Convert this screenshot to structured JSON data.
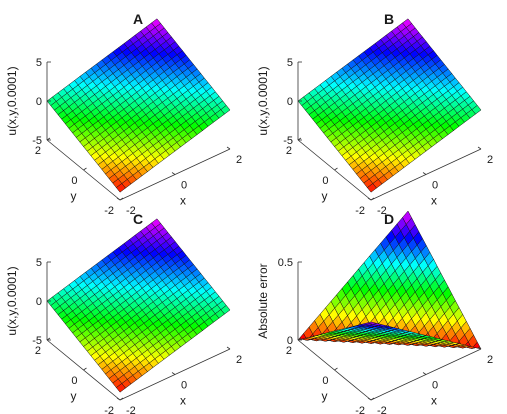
{
  "chart_data": [
    {
      "type": "surface",
      "title": "A",
      "xlabel": "x",
      "ylabel": "y",
      "zlabel": "u(x,y,0.0001)",
      "xlim": [
        -2,
        2
      ],
      "ylim": [
        -2,
        2
      ],
      "zlim": [
        -5,
        5
      ],
      "xticks": [
        "-2",
        "0",
        "2"
      ],
      "yticks": [
        "-2",
        "0",
        "2"
      ],
      "zticks": [
        "-5",
        "0",
        "5"
      ],
      "grid": false,
      "colormap": "hsv",
      "surface": {
        "formula": "u = x + y",
        "x_range": [
          -2,
          2
        ],
        "y_range": [
          -2,
          2
        ],
        "z_range": [
          -4,
          4
        ]
      }
    },
    {
      "type": "surface",
      "title": "B",
      "xlabel": "x",
      "ylabel": "y",
      "zlabel": "u(x,y,0.0001)",
      "xlim": [
        -2,
        2
      ],
      "ylim": [
        -2,
        2
      ],
      "zlim": [
        -5,
        5
      ],
      "xticks": [
        "-2",
        "0",
        "2"
      ],
      "yticks": [
        "-2",
        "0",
        "2"
      ],
      "zticks": [
        "-5",
        "0",
        "5"
      ],
      "grid": false,
      "colormap": "hsv",
      "surface": {
        "formula": "u = x + y",
        "x_range": [
          -2,
          2
        ],
        "y_range": [
          -2,
          2
        ],
        "z_range": [
          -4,
          4
        ]
      }
    },
    {
      "type": "surface",
      "title": "C",
      "xlabel": "x",
      "ylabel": "y",
      "zlabel": "u(x,y,0.0001)",
      "xlim": [
        -2,
        2
      ],
      "ylim": [
        -2,
        2
      ],
      "zlim": [
        -5,
        5
      ],
      "xticks": [
        "-2",
        "0",
        "2"
      ],
      "yticks": [
        "-2",
        "0",
        "2"
      ],
      "zticks": [
        "-5",
        "0",
        "5"
      ],
      "grid": false,
      "colormap": "hsv",
      "surface": {
        "formula": "u = x + y",
        "x_range": [
          -2,
          2
        ],
        "y_range": [
          -2,
          2
        ],
        "z_range": [
          -4,
          4
        ]
      }
    },
    {
      "type": "surface",
      "title": "D",
      "xlabel": "x",
      "ylabel": "y",
      "zlabel": "Absolute error",
      "xlim": [
        -2,
        2
      ],
      "ylim": [
        -2,
        2
      ],
      "zlim": [
        0,
        0.5
      ],
      "xticks": [
        "-2",
        "0",
        "2"
      ],
      "yticks": [
        "-2",
        "0",
        "2"
      ],
      "zticks": [
        "0",
        "0.5"
      ],
      "grid": false,
      "colormap": "hsv",
      "surface": {
        "formula": "error = 0.5 * |x + y| / 4",
        "x_range": [
          -2,
          2
        ],
        "y_range": [
          -2,
          2
        ],
        "z_range": [
          0,
          0.5
        ]
      }
    }
  ]
}
